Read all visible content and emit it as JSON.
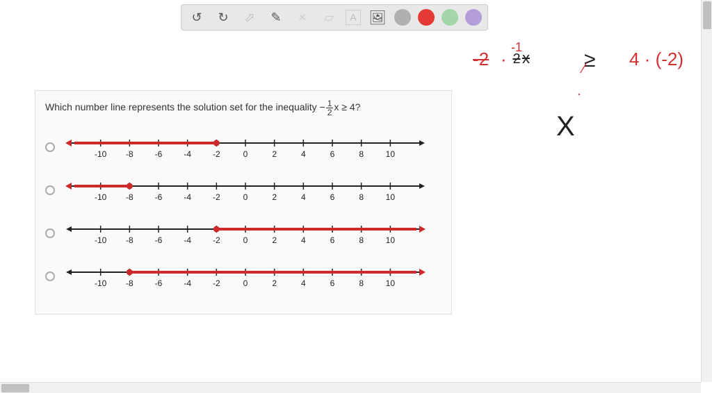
{
  "toolbar": {
    "undo_glyph": "↺",
    "redo_glyph": "↻",
    "pointer_glyph": "⬀",
    "pen_glyph": "✎",
    "tools_glyph": "✕",
    "eraser_glyph": "▱",
    "text_glyph": "A",
    "image_glyph": "🖼",
    "colors": {
      "grey": "#b0b0b0",
      "red": "#e53935",
      "green": "#a5d6a7",
      "purple": "#b39ddb"
    }
  },
  "question": {
    "prefix": "Which number line represents the solution set for the inequality ",
    "neg": "−",
    "frac_num": "1",
    "frac_den": "2",
    "suffix": "x ≥ 4?"
  },
  "numberline": {
    "min": -12,
    "max": 12,
    "ticks": [
      -10,
      -8,
      -6,
      -4,
      -2,
      0,
      2,
      4,
      6,
      8,
      10
    ],
    "axis_color": "#222222",
    "highlight_color": "#cc2a2a",
    "tick_fontsize": 12,
    "line_width": 2,
    "highlight_width": 4
  },
  "options": [
    {
      "closed_point": -2,
      "direction": "left"
    },
    {
      "closed_point": -8,
      "direction": "left"
    },
    {
      "closed_point": -2,
      "direction": "right"
    },
    {
      "closed_point": -8,
      "direction": "right"
    }
  ],
  "annotations": {
    "left_mult": "-2",
    "dot1": "·",
    "frac_expr_top": "-1",
    "frac_expr_bot": "2",
    "frac_x": "x",
    "ge": "≥",
    "right_side": "4 · (-2)",
    "big_x": "X",
    "color_red": "#d32f2f",
    "color_black": "#222222"
  }
}
